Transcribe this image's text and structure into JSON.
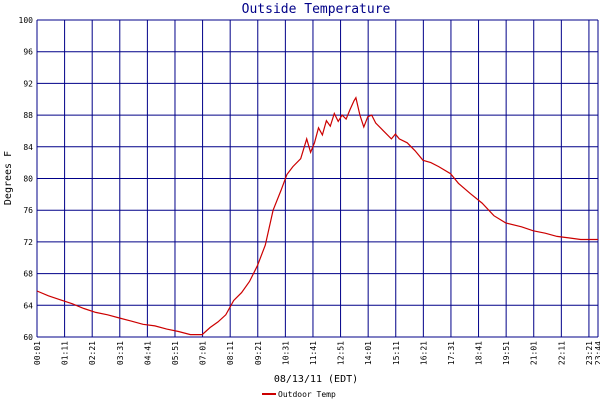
{
  "chart_data": {
    "type": "line",
    "title": "Outside Temperature",
    "xlabel": "08/13/11 (EDT)",
    "ylabel": "Degrees F",
    "ylim": [
      60,
      100
    ],
    "yticks": [
      60,
      64,
      68,
      72,
      76,
      80,
      84,
      88,
      92,
      96,
      100
    ],
    "x_tick_labels": [
      "00:01",
      "01:11",
      "02:21",
      "03:31",
      "04:41",
      "05:51",
      "07:01",
      "08:11",
      "09:21",
      "10:31",
      "11:41",
      "12:51",
      "14:01",
      "15:11",
      "16:21",
      "17:31",
      "18:41",
      "19:51",
      "21:01",
      "22:11",
      "23:21",
      "23:44"
    ],
    "grid": true,
    "legend_position": "bottom-left",
    "series": [
      {
        "name": "Outdoor Temp",
        "color": "#cc0000",
        "points": [
          [
            "00:01",
            65.8
          ],
          [
            "00:30",
            65.2
          ],
          [
            "01:00",
            64.7
          ],
          [
            "01:30",
            64.2
          ],
          [
            "02:00",
            63.6
          ],
          [
            "02:30",
            63.1
          ],
          [
            "03:00",
            62.8
          ],
          [
            "03:30",
            62.4
          ],
          [
            "04:00",
            62.0
          ],
          [
            "04:30",
            61.6
          ],
          [
            "05:00",
            61.4
          ],
          [
            "05:30",
            61.0
          ],
          [
            "06:00",
            60.7
          ],
          [
            "06:30",
            60.3
          ],
          [
            "07:00",
            60.3
          ],
          [
            "07:20",
            61.2
          ],
          [
            "07:40",
            61.9
          ],
          [
            "08:00",
            62.8
          ],
          [
            "08:20",
            64.6
          ],
          [
            "08:40",
            65.6
          ],
          [
            "09:00",
            67.0
          ],
          [
            "09:20",
            69.0
          ],
          [
            "09:40",
            71.6
          ],
          [
            "10:00",
            76.0
          ],
          [
            "10:20",
            78.5
          ],
          [
            "10:35",
            80.5
          ],
          [
            "10:50",
            81.5
          ],
          [
            "11:10",
            82.5
          ],
          [
            "11:25",
            85.0
          ],
          [
            "11:35",
            83.3
          ],
          [
            "11:45",
            84.5
          ],
          [
            "11:55",
            86.4
          ],
          [
            "12:05",
            85.5
          ],
          [
            "12:15",
            87.3
          ],
          [
            "12:25",
            86.6
          ],
          [
            "12:35",
            88.2
          ],
          [
            "12:45",
            87.2
          ],
          [
            "12:55",
            88.0
          ],
          [
            "13:05",
            87.5
          ],
          [
            "13:15",
            88.7
          ],
          [
            "13:25",
            89.8
          ],
          [
            "13:30",
            90.2
          ],
          [
            "13:40",
            88.0
          ],
          [
            "13:50",
            86.5
          ],
          [
            "14:00",
            87.8
          ],
          [
            "14:10",
            88.0
          ],
          [
            "14:20",
            87.0
          ],
          [
            "14:40",
            86.0
          ],
          [
            "15:00",
            85.0
          ],
          [
            "15:10",
            85.6
          ],
          [
            "15:20",
            85.0
          ],
          [
            "15:40",
            84.5
          ],
          [
            "16:00",
            83.5
          ],
          [
            "16:20",
            82.3
          ],
          [
            "16:40",
            82.0
          ],
          [
            "17:00",
            81.5
          ],
          [
            "17:30",
            80.6
          ],
          [
            "17:50",
            79.4
          ],
          [
            "18:20",
            78.1
          ],
          [
            "18:50",
            76.9
          ],
          [
            "19:20",
            75.3
          ],
          [
            "19:50",
            74.4
          ],
          [
            "20:30",
            73.9
          ],
          [
            "21:00",
            73.4
          ],
          [
            "21:30",
            73.1
          ],
          [
            "22:00",
            72.7
          ],
          [
            "22:30",
            72.5
          ],
          [
            "23:00",
            72.3
          ],
          [
            "23:44",
            72.3
          ]
        ]
      }
    ]
  }
}
